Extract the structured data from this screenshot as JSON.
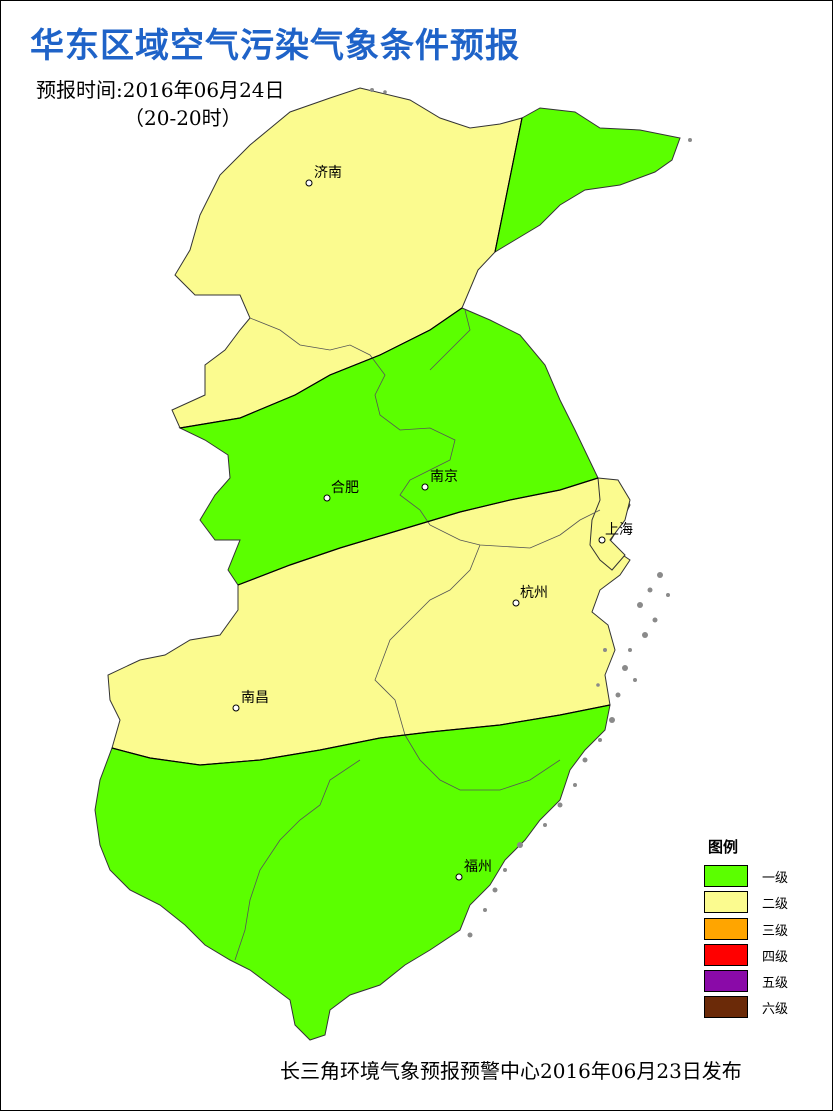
{
  "title": "华东区域空气污染气象条件预报",
  "forecast_time": "预报时间:2016年06月24日",
  "forecast_hours": "（20-20时）",
  "cities": [
    "济南",
    "合肥",
    "南京",
    "上海",
    "杭州",
    "南昌",
    "福州"
  ],
  "legend": {
    "title": "图例",
    "items": [
      {
        "label": "一级",
        "color": "#5bff00"
      },
      {
        "label": "二级",
        "color": "#fbfb8f"
      },
      {
        "label": "三级",
        "color": "#ffa500"
      },
      {
        "label": "四级",
        "color": "#ff0000"
      },
      {
        "label": "五级",
        "color": "#8a0aa8"
      },
      {
        "label": "六级",
        "color": "#6b2a08"
      }
    ]
  },
  "footer": "长三角环境气象预报预警中心2016年06月23日发布",
  "colors": {
    "title": "#1f63c8",
    "level1": "#5bff00",
    "level2": "#fbfb8f",
    "islands": "#8a8a8a"
  }
}
